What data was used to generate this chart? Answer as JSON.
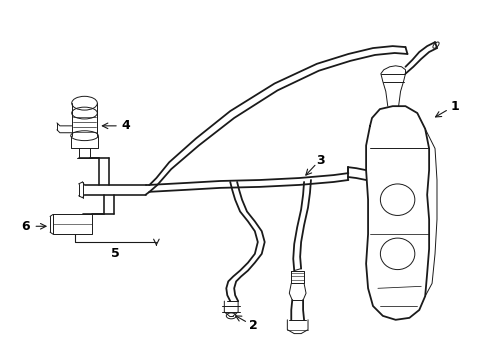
{
  "bg_color": "#ffffff",
  "line_color": "#1a1a1a",
  "lw_main": 1.3,
  "lw_thin": 0.7,
  "label_fs": 9
}
